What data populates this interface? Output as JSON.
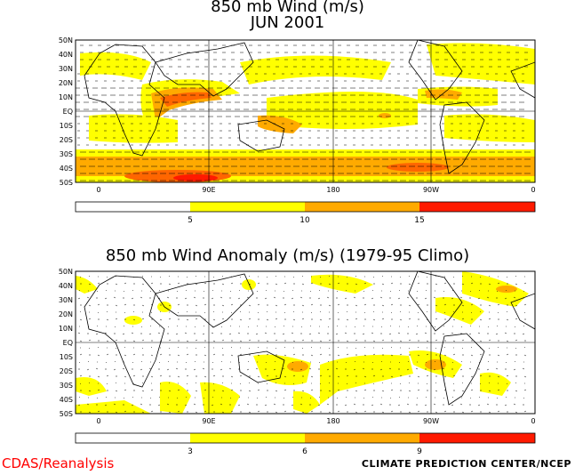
{
  "top_panel": {
    "title_line1": "850 mb Wind (m/s)",
    "title_line2": "JUN 2001",
    "lat_labels": [
      "50N",
      "40N",
      "30N",
      "20N",
      "10N",
      "EQ",
      "10S",
      "20S",
      "30S",
      "40S",
      "50S"
    ],
    "lon_labels": [
      "0",
      "90E",
      "180",
      "90W",
      "0"
    ],
    "colorbar_labels": [
      "5",
      "10",
      "15"
    ],
    "colorbar_colors": [
      "#ffffff",
      "#ffff00",
      "#ffaa00",
      "#ff6600",
      "#ff1a00"
    ]
  },
  "bottom_panel": {
    "title": "850 mb Wind Anomaly (m/s) (1979-95 Climo)",
    "lat_labels": [
      "50N",
      "40N",
      "30N",
      "20N",
      "10N",
      "EQ",
      "10S",
      "20S",
      "30S",
      "40S",
      "50S"
    ],
    "lon_labels": [
      "0",
      "90E",
      "180",
      "90W",
      "0"
    ],
    "colorbar_labels": [
      "3",
      "6",
      "9"
    ],
    "colorbar_colors": [
      "#ffffff",
      "#ffff00",
      "#ffaa00",
      "#ff6600",
      "#ff1a00"
    ]
  },
  "footer": {
    "left": "CDAS/Reanalysis",
    "right": "CLIMATE PREDICTION CENTER/NCEP"
  }
}
